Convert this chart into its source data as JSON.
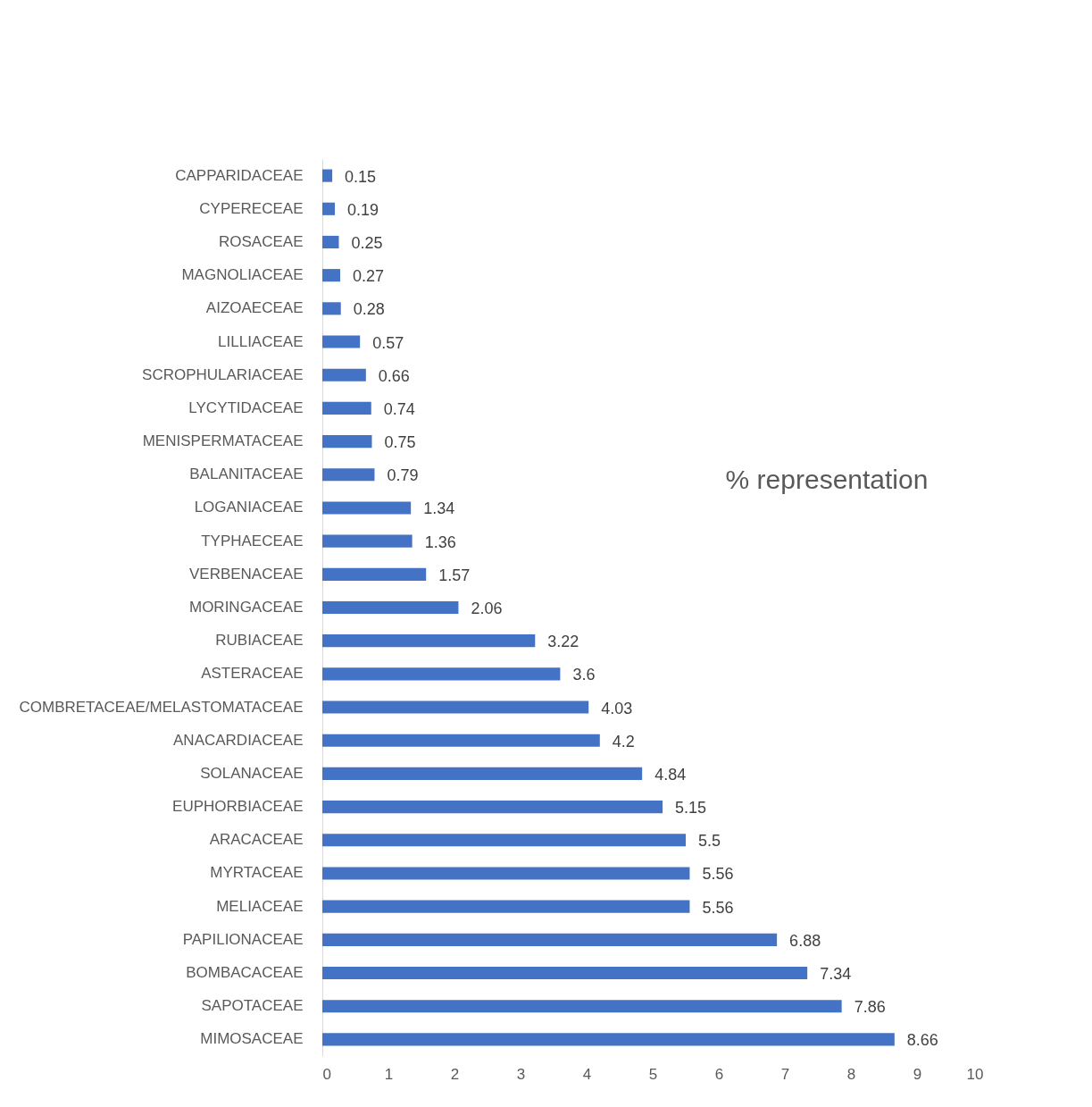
{
  "chart_data": {
    "type": "bar",
    "orientation": "horizontal",
    "categories": [
      "CAPPARIDACEAE",
      "CYPERECEAE",
      "ROSACEAE",
      "MAGNOLIACEAE",
      "AIZOAECEAE",
      "LILLIACEAE",
      "SCROPHULARIACEAE",
      "LYCYTIDACEAE",
      "MENISPERMATACEAE",
      "BALANITACEAE",
      "LOGANIACEAE",
      "TYPHAECEAE",
      "VERBENACEAE",
      "MORINGACEAE",
      "RUBIACEAE",
      "ASTERACEAE",
      "COMBRETACEAE/MELASTOMATACEAE",
      "ANACARDIACEAE",
      "SOLANACEAE",
      "EUPHORBIACEAE",
      "ARACACEAE",
      "MYRTACEAE",
      "MELIACEAE",
      "PAPILIONACEAE",
      "BOMBACACEAE",
      "SAPOTACEAE",
      "MIMOSACEAE"
    ],
    "values": [
      0.15,
      0.19,
      0.25,
      0.27,
      0.28,
      0.57,
      0.66,
      0.74,
      0.75,
      0.79,
      1.34,
      1.36,
      1.57,
      2.06,
      3.22,
      3.6,
      4.03,
      4.2,
      4.84,
      5.15,
      5.5,
      5.56,
      5.56,
      6.88,
      7.34,
      7.86,
      8.66
    ],
    "color": "#4472c4",
    "xlim": [
      0,
      10
    ],
    "xticks": [
      0,
      1,
      2,
      3,
      4,
      5,
      6,
      7,
      8,
      9,
      10
    ],
    "grid": false,
    "data_labels": true,
    "annotations": [
      "% representation"
    ]
  }
}
